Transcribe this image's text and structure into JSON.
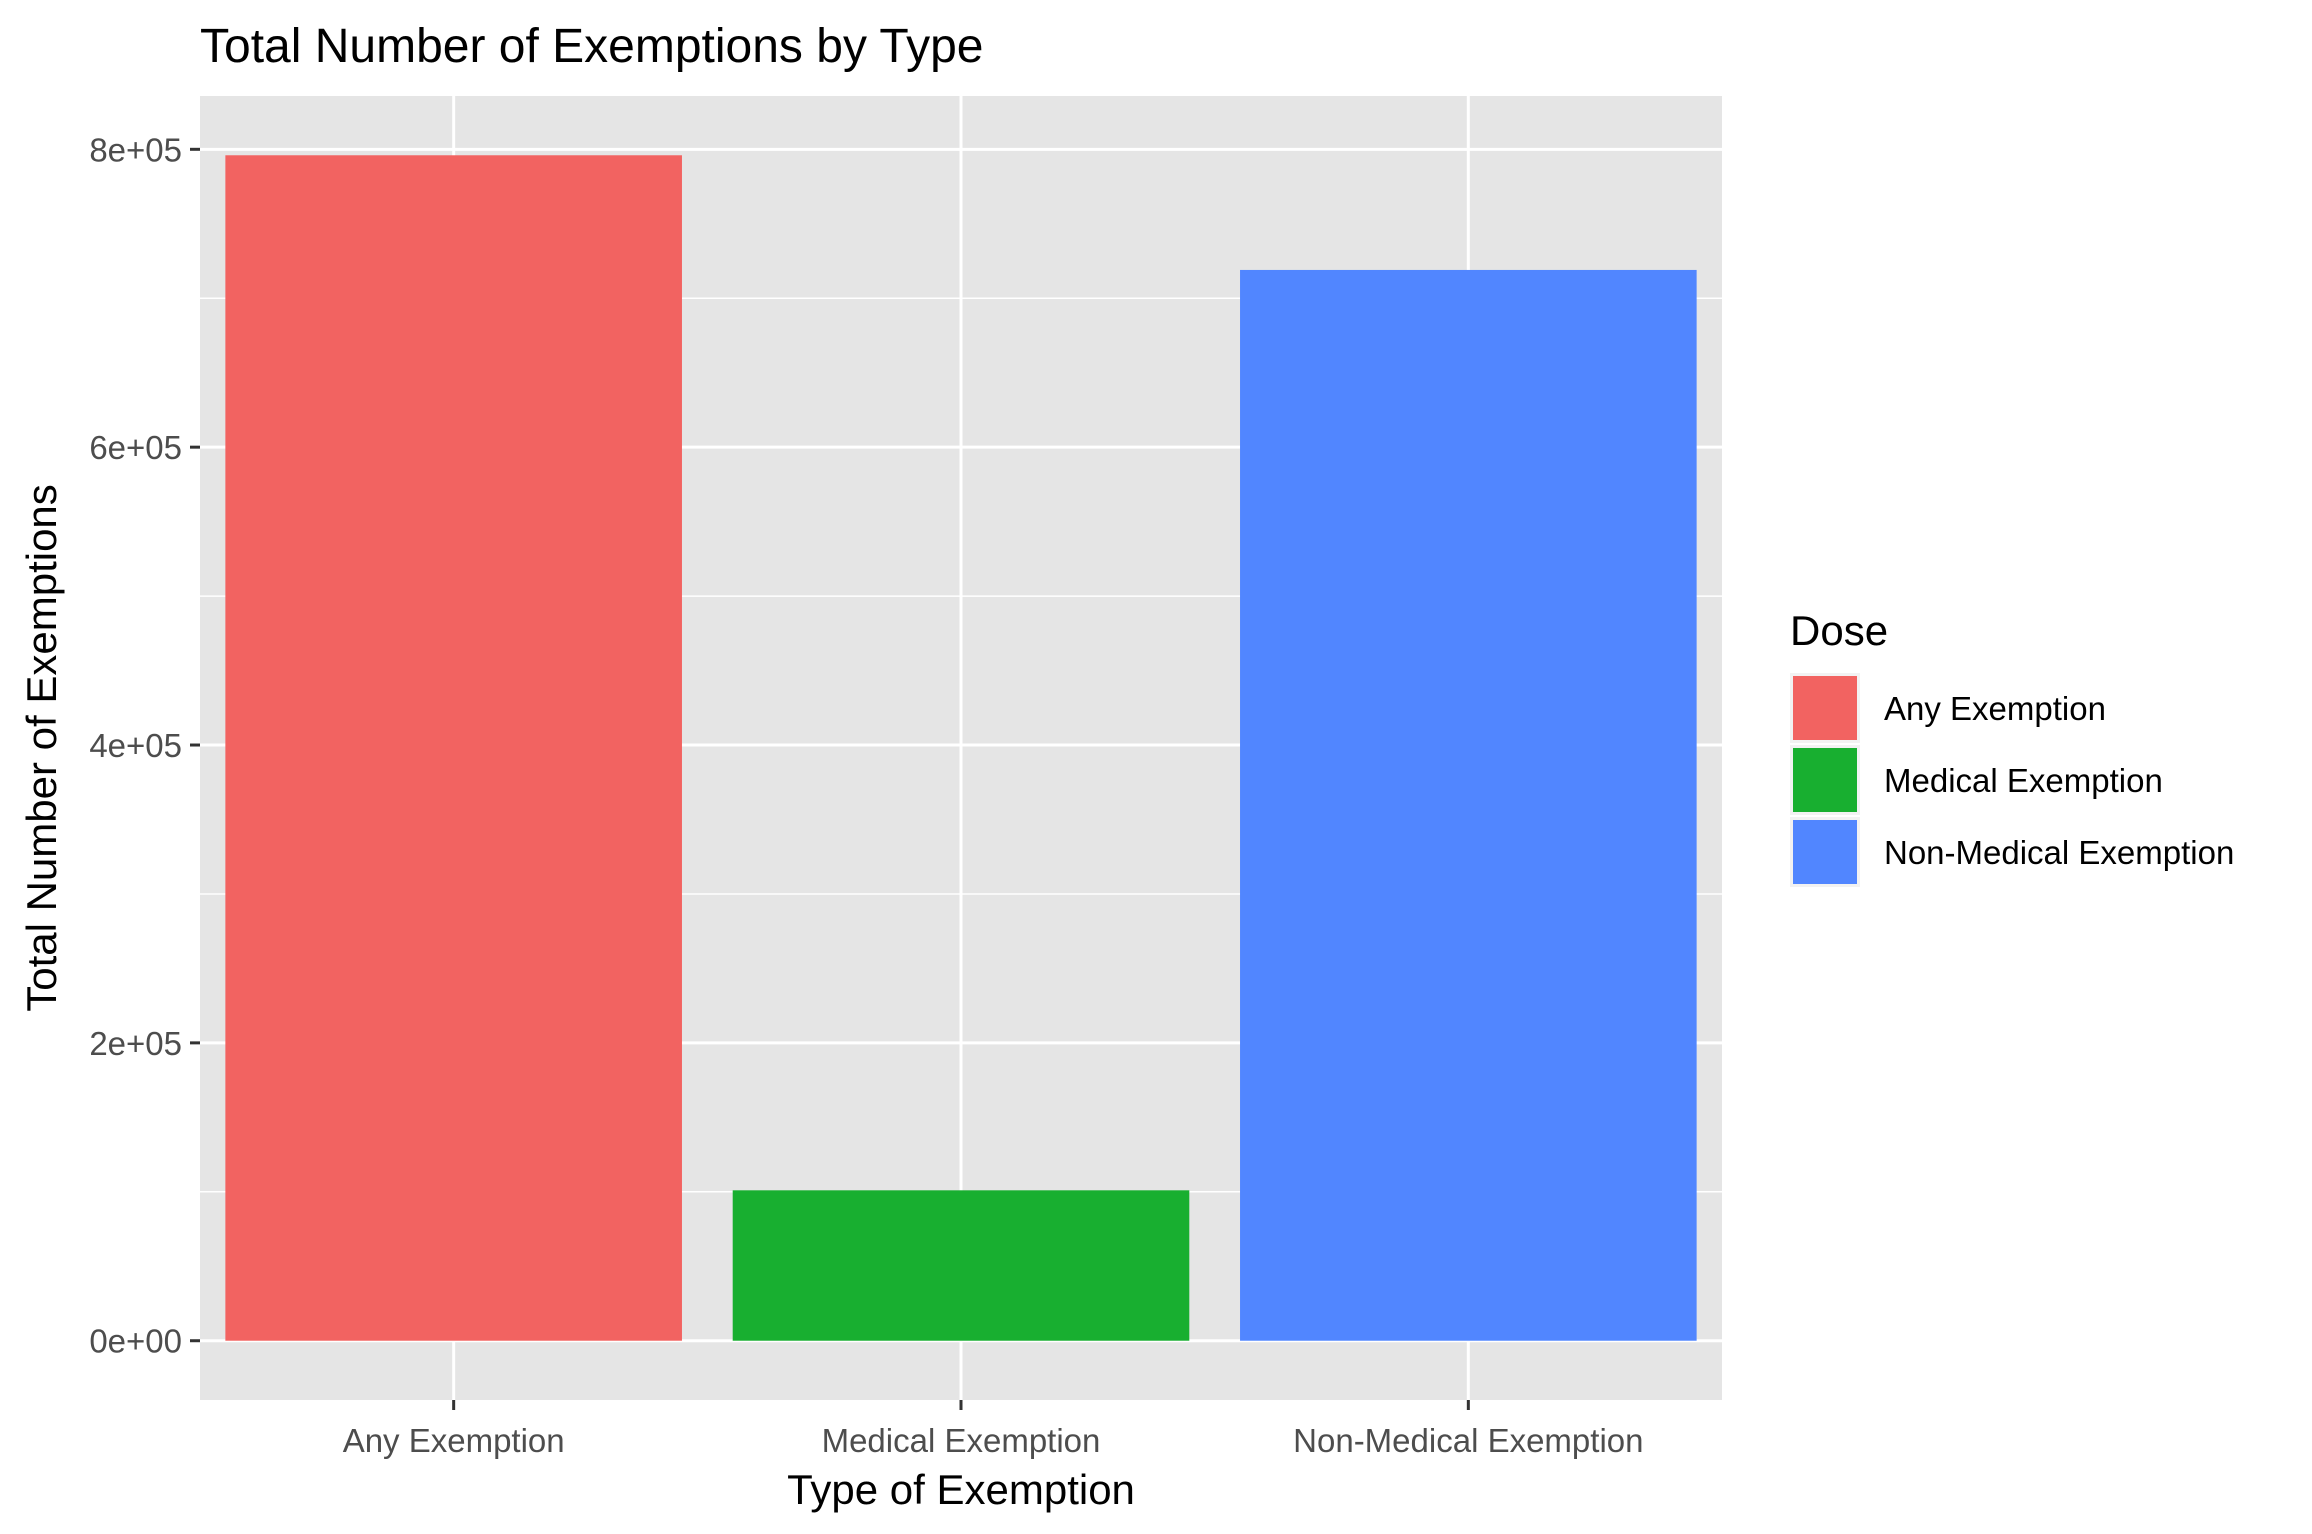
{
  "chart_data": {
    "type": "bar",
    "title": "Total Number of Exemptions by Type",
    "xlabel": "Type of Exemption",
    "ylabel": "Total Number of Exemptions",
    "categories": [
      "Any Exemption",
      "Medical Exemption",
      "Non-Medical Exemption"
    ],
    "values": [
      796000,
      101000,
      719000
    ],
    "ylim": [
      -39800,
      835800
    ],
    "yticks": [
      0,
      200000,
      400000,
      600000,
      800000
    ],
    "ytick_labels": [
      "0e+00",
      "2e+05",
      "4e+05",
      "6e+05",
      "8e+05"
    ],
    "grid": true,
    "legend": {
      "title": "Dose",
      "position": "right",
      "items": [
        "Any Exemption",
        "Medical Exemption",
        "Non-Medical Exemption"
      ]
    },
    "colors": [
      "#F26361",
      "#18AF30",
      "#5186FF"
    ],
    "panel_background": "#E5E5E5",
    "grid_color": "#FFFFFF"
  }
}
